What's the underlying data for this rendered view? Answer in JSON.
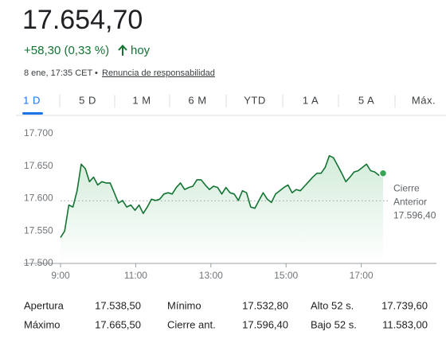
{
  "header": {
    "price": "17.654,70",
    "change": "+58,30 (0,33 %)",
    "period": "hoy",
    "timestamp": "8 ene, 17:35 CET",
    "separator": "•",
    "disclaimer": "Renuncia de responsabilidad"
  },
  "tabs": [
    "1 D",
    "5 D",
    "1 M",
    "6 M",
    "YTD",
    "1 A",
    "5 A",
    "Máx."
  ],
  "chart_data": {
    "type": "line",
    "x": [
      9,
      9.11,
      9.22,
      9.33,
      9.44,
      9.55,
      9.66,
      9.77,
      9.88,
      9.99,
      10.1,
      10.21,
      10.32,
      10.43,
      10.54,
      10.65,
      10.76,
      10.87,
      10.98,
      11.09,
      11.2,
      11.31,
      11.42,
      11.53,
      11.64,
      11.75,
      11.86,
      11.97,
      12.08,
      12.19,
      12.3,
      12.41,
      12.52,
      12.63,
      12.74,
      12.85,
      12.96,
      13.07,
      13.18,
      13.29,
      13.4,
      13.51,
      13.62,
      13.73,
      13.84,
      13.95,
      14.06,
      14.17,
      14.28,
      14.39,
      14.5,
      14.61,
      14.72,
      14.83,
      14.94,
      15.05,
      15.16,
      15.27,
      15.38,
      15.49,
      15.6,
      15.71,
      15.82,
      15.93,
      16.04,
      16.15,
      16.26,
      16.37,
      16.48,
      16.59,
      16.7,
      16.81,
      16.92,
      17.03,
      17.14,
      17.25,
      17.36,
      17.47,
      17.58
    ],
    "values": [
      17540,
      17550,
      17590,
      17587,
      17612,
      17653,
      17646,
      17626,
      17633,
      17621,
      17626,
      17624,
      17624,
      17609,
      17593,
      17597,
      17587,
      17590,
      17582,
      17590,
      17577,
      17587,
      17599,
      17597,
      17599,
      17607,
      17609,
      17607,
      17617,
      17624,
      17614,
      17617,
      17619,
      17629,
      17629,
      17621,
      17614,
      17619,
      17617,
      17607,
      17617,
      17609,
      17607,
      17597,
      17612,
      17609,
      17587,
      17585,
      17597,
      17609,
      17599,
      17594,
      17607,
      17612,
      17617,
      17621,
      17609,
      17614,
      17612,
      17619,
      17626,
      17633,
      17639,
      17639,
      17648,
      17666,
      17663,
      17651,
      17639,
      17626,
      17633,
      17641,
      17643,
      17648,
      17653,
      17643,
      17641,
      17636,
      17639
    ],
    "color": "#137333",
    "xlim": [
      9,
      19
    ],
    "xticks": [
      {
        "value": 9,
        "label": "9:00"
      },
      {
        "value": 11,
        "label": "11:00"
      },
      {
        "value": 13,
        "label": "13:00"
      },
      {
        "value": 15,
        "label": "15:00"
      },
      {
        "value": 17,
        "label": "17:00"
      }
    ],
    "ylim": [
      17500,
      17700
    ],
    "yticks": [
      {
        "value": 17500,
        "label": "17.500"
      },
      {
        "value": 17550,
        "label": "17.550"
      },
      {
        "value": 17600,
        "label": "17.600"
      },
      {
        "value": 17650,
        "label": "17.650"
      },
      {
        "value": 17700,
        "label": "17.700"
      }
    ],
    "reference": {
      "label_lines": [
        "Cierre",
        "Anterior"
      ],
      "value": 17596.4,
      "value_label": "17.596,40"
    }
  },
  "stats": {
    "rows": [
      [
        {
          "label": "Apertura",
          "value": "17.538,50"
        },
        {
          "label": "Mínimo",
          "value": "17.532,80"
        },
        {
          "label": "Alto 52 s.",
          "value": "17.739,60"
        }
      ],
      [
        {
          "label": "Máximo",
          "value": "17.665,50"
        },
        {
          "label": "Cierre ant.",
          "value": "17.596,40"
        },
        {
          "label": "Bajo 52 s.",
          "value": "11.583,00"
        }
      ]
    ]
  }
}
